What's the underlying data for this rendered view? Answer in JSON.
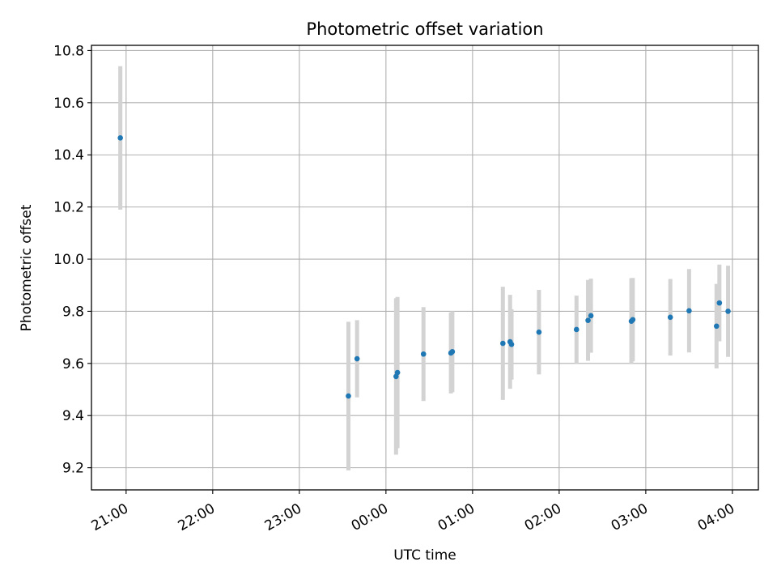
{
  "chart_data": {
    "type": "scatter",
    "title": "Photometric offset variation",
    "xlabel": "UTC time",
    "ylabel": "Photometric offset",
    "grid": true,
    "x_unit": "UTC time (HH:MM), times after midnight are on the following day",
    "xlim": [
      "20:36",
      "04:18"
    ],
    "ylim": [
      9.115,
      10.82
    ],
    "x_ticks": [
      "21:00",
      "22:00",
      "23:00",
      "00:00",
      "01:00",
      "02:00",
      "03:00",
      "04:00"
    ],
    "y_ticks": [
      "9.2",
      "9.4",
      "9.6",
      "9.8",
      "10.0",
      "10.2",
      "10.4",
      "10.6",
      "10.8"
    ],
    "colors": {
      "marker": "#1f77b4",
      "errorbar": "#d3d3d3",
      "grid": "#b0b0b0"
    },
    "series": [
      {
        "points": [
          {
            "x": "20:56",
            "y": 10.465,
            "err": 0.275
          },
          {
            "x": "23:34",
            "y": 9.475,
            "err": 0.285
          },
          {
            "x": "23:40",
            "y": 9.618,
            "err": 0.148
          },
          {
            "x": "00:07",
            "y": 9.55,
            "err": 0.3
          },
          {
            "x": "00:08",
            "y": 9.565,
            "err": 0.29
          },
          {
            "x": "00:26",
            "y": 9.636,
            "err": 0.18
          },
          {
            "x": "00:45",
            "y": 9.64,
            "err": 0.155
          },
          {
            "x": "00:46",
            "y": 9.645,
            "err": 0.155
          },
          {
            "x": "01:21",
            "y": 9.677,
            "err": 0.217
          },
          {
            "x": "01:26",
            "y": 9.683,
            "err": 0.18
          },
          {
            "x": "01:27",
            "y": 9.673,
            "err": 0.135
          },
          {
            "x": "01:46",
            "y": 9.72,
            "err": 0.162
          },
          {
            "x": "02:12",
            "y": 9.73,
            "err": 0.13
          },
          {
            "x": "02:20",
            "y": 9.765,
            "err": 0.155
          },
          {
            "x": "02:22",
            "y": 9.783,
            "err": 0.142
          },
          {
            "x": "02:50",
            "y": 9.762,
            "err": 0.165
          },
          {
            "x": "02:51",
            "y": 9.768,
            "err": 0.16
          },
          {
            "x": "03:17",
            "y": 9.777,
            "err": 0.147
          },
          {
            "x": "03:30",
            "y": 9.802,
            "err": 0.16
          },
          {
            "x": "03:49",
            "y": 9.743,
            "err": 0.162
          },
          {
            "x": "03:51",
            "y": 9.832,
            "err": 0.147
          },
          {
            "x": "03:57",
            "y": 9.8,
            "err": 0.175
          }
        ]
      }
    ]
  }
}
